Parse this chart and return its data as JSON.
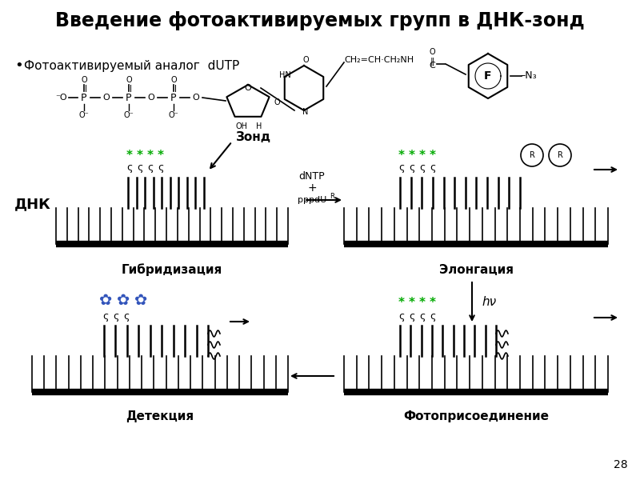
{
  "title": "Введение фотоактивируемых групп в ДНК-зонд",
  "title_bg": "#6dd0f0",
  "bg_color": "#ffffff",
  "title_fontsize": 17,
  "bullet_text": "Фотоактивируемый аналог  dUTP",
  "label_hybridization": "Гибридизация",
  "label_elongation": "Элонгация",
  "label_detection": "Детекция",
  "label_photoadd": "Фотоприсоединение",
  "label_dna": "ДНК",
  "label_probe": "Зонд",
  "label_hnv": "hν",
  "page_num": "28",
  "green_color": "#00aa00",
  "blue_color": "#3355bb",
  "black": "#000000"
}
